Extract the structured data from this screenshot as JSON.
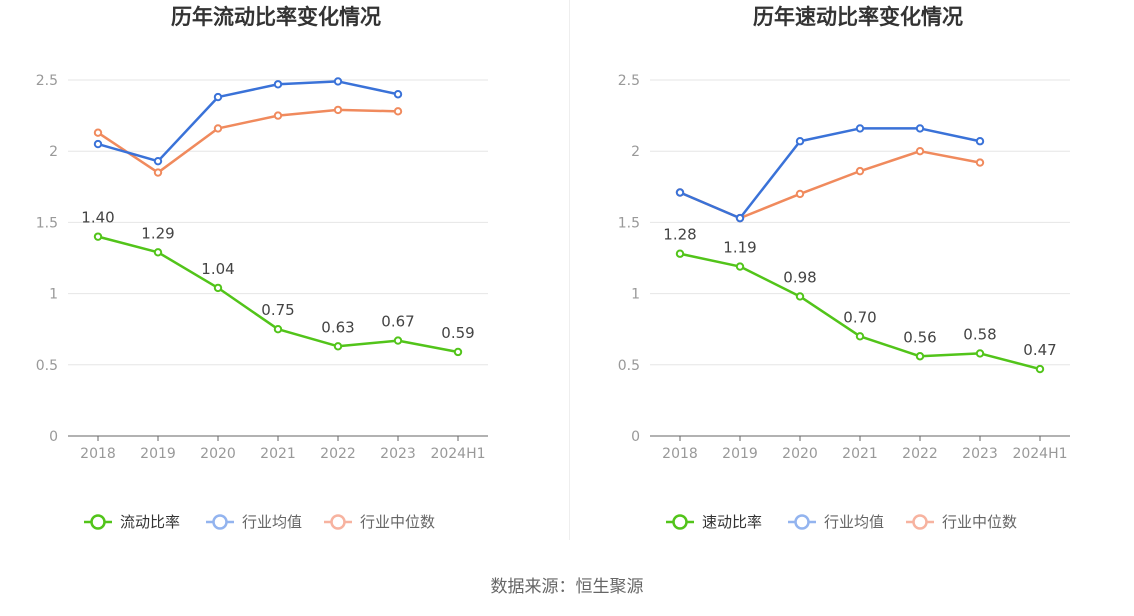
{
  "source_text": "数据来源：恒生聚源",
  "colors": {
    "company": "#52c41a",
    "avg": "#3a72d8",
    "median": "#f08a5d",
    "legend_avg": "#93b4ef",
    "legend_median": "#f7b3a0"
  },
  "chart_data": [
    {
      "type": "line",
      "title": "历年流动比率变化情况",
      "categories": [
        "2018",
        "2019",
        "2020",
        "2021",
        "2022",
        "2023",
        "2024H1"
      ],
      "ylim": [
        0,
        2.5
      ],
      "yticks": [
        "0",
        "0.5",
        "1",
        "1.5",
        "2",
        "2.5"
      ],
      "grid": true,
      "legend_position": "bottom",
      "series": [
        {
          "name": "流动比率",
          "values": [
            1.4,
            1.29,
            1.04,
            0.75,
            0.63,
            0.67,
            0.59
          ],
          "labels": [
            "1.40",
            "1.29",
            "1.04",
            "0.75",
            "0.63",
            "0.67",
            "0.59"
          ]
        },
        {
          "name": "行业均值",
          "values": [
            2.05,
            1.93,
            2.38,
            2.47,
            2.49,
            2.4,
            null
          ]
        },
        {
          "name": "行业中位数",
          "values": [
            2.13,
            1.85,
            2.16,
            2.25,
            2.29,
            2.28,
            null
          ]
        }
      ]
    },
    {
      "type": "line",
      "title": "历年速动比率变化情况",
      "categories": [
        "2018",
        "2019",
        "2020",
        "2021",
        "2022",
        "2023",
        "2024H1"
      ],
      "ylim": [
        0,
        2.5
      ],
      "yticks": [
        "0",
        "0.5",
        "1",
        "1.5",
        "2",
        "2.5"
      ],
      "grid": true,
      "legend_position": "bottom",
      "series": [
        {
          "name": "速动比率",
          "values": [
            1.28,
            1.19,
            0.98,
            0.7,
            0.56,
            0.58,
            0.47
          ],
          "labels": [
            "1.28",
            "1.19",
            "0.98",
            "0.70",
            "0.56",
            "0.58",
            "0.47"
          ]
        },
        {
          "name": "行业均值",
          "values": [
            1.71,
            1.53,
            2.07,
            2.16,
            2.16,
            2.07,
            null
          ]
        },
        {
          "name": "行业中位数",
          "values": [
            1.71,
            1.53,
            1.7,
            1.86,
            2.0,
            1.92,
            null
          ]
        }
      ]
    }
  ]
}
